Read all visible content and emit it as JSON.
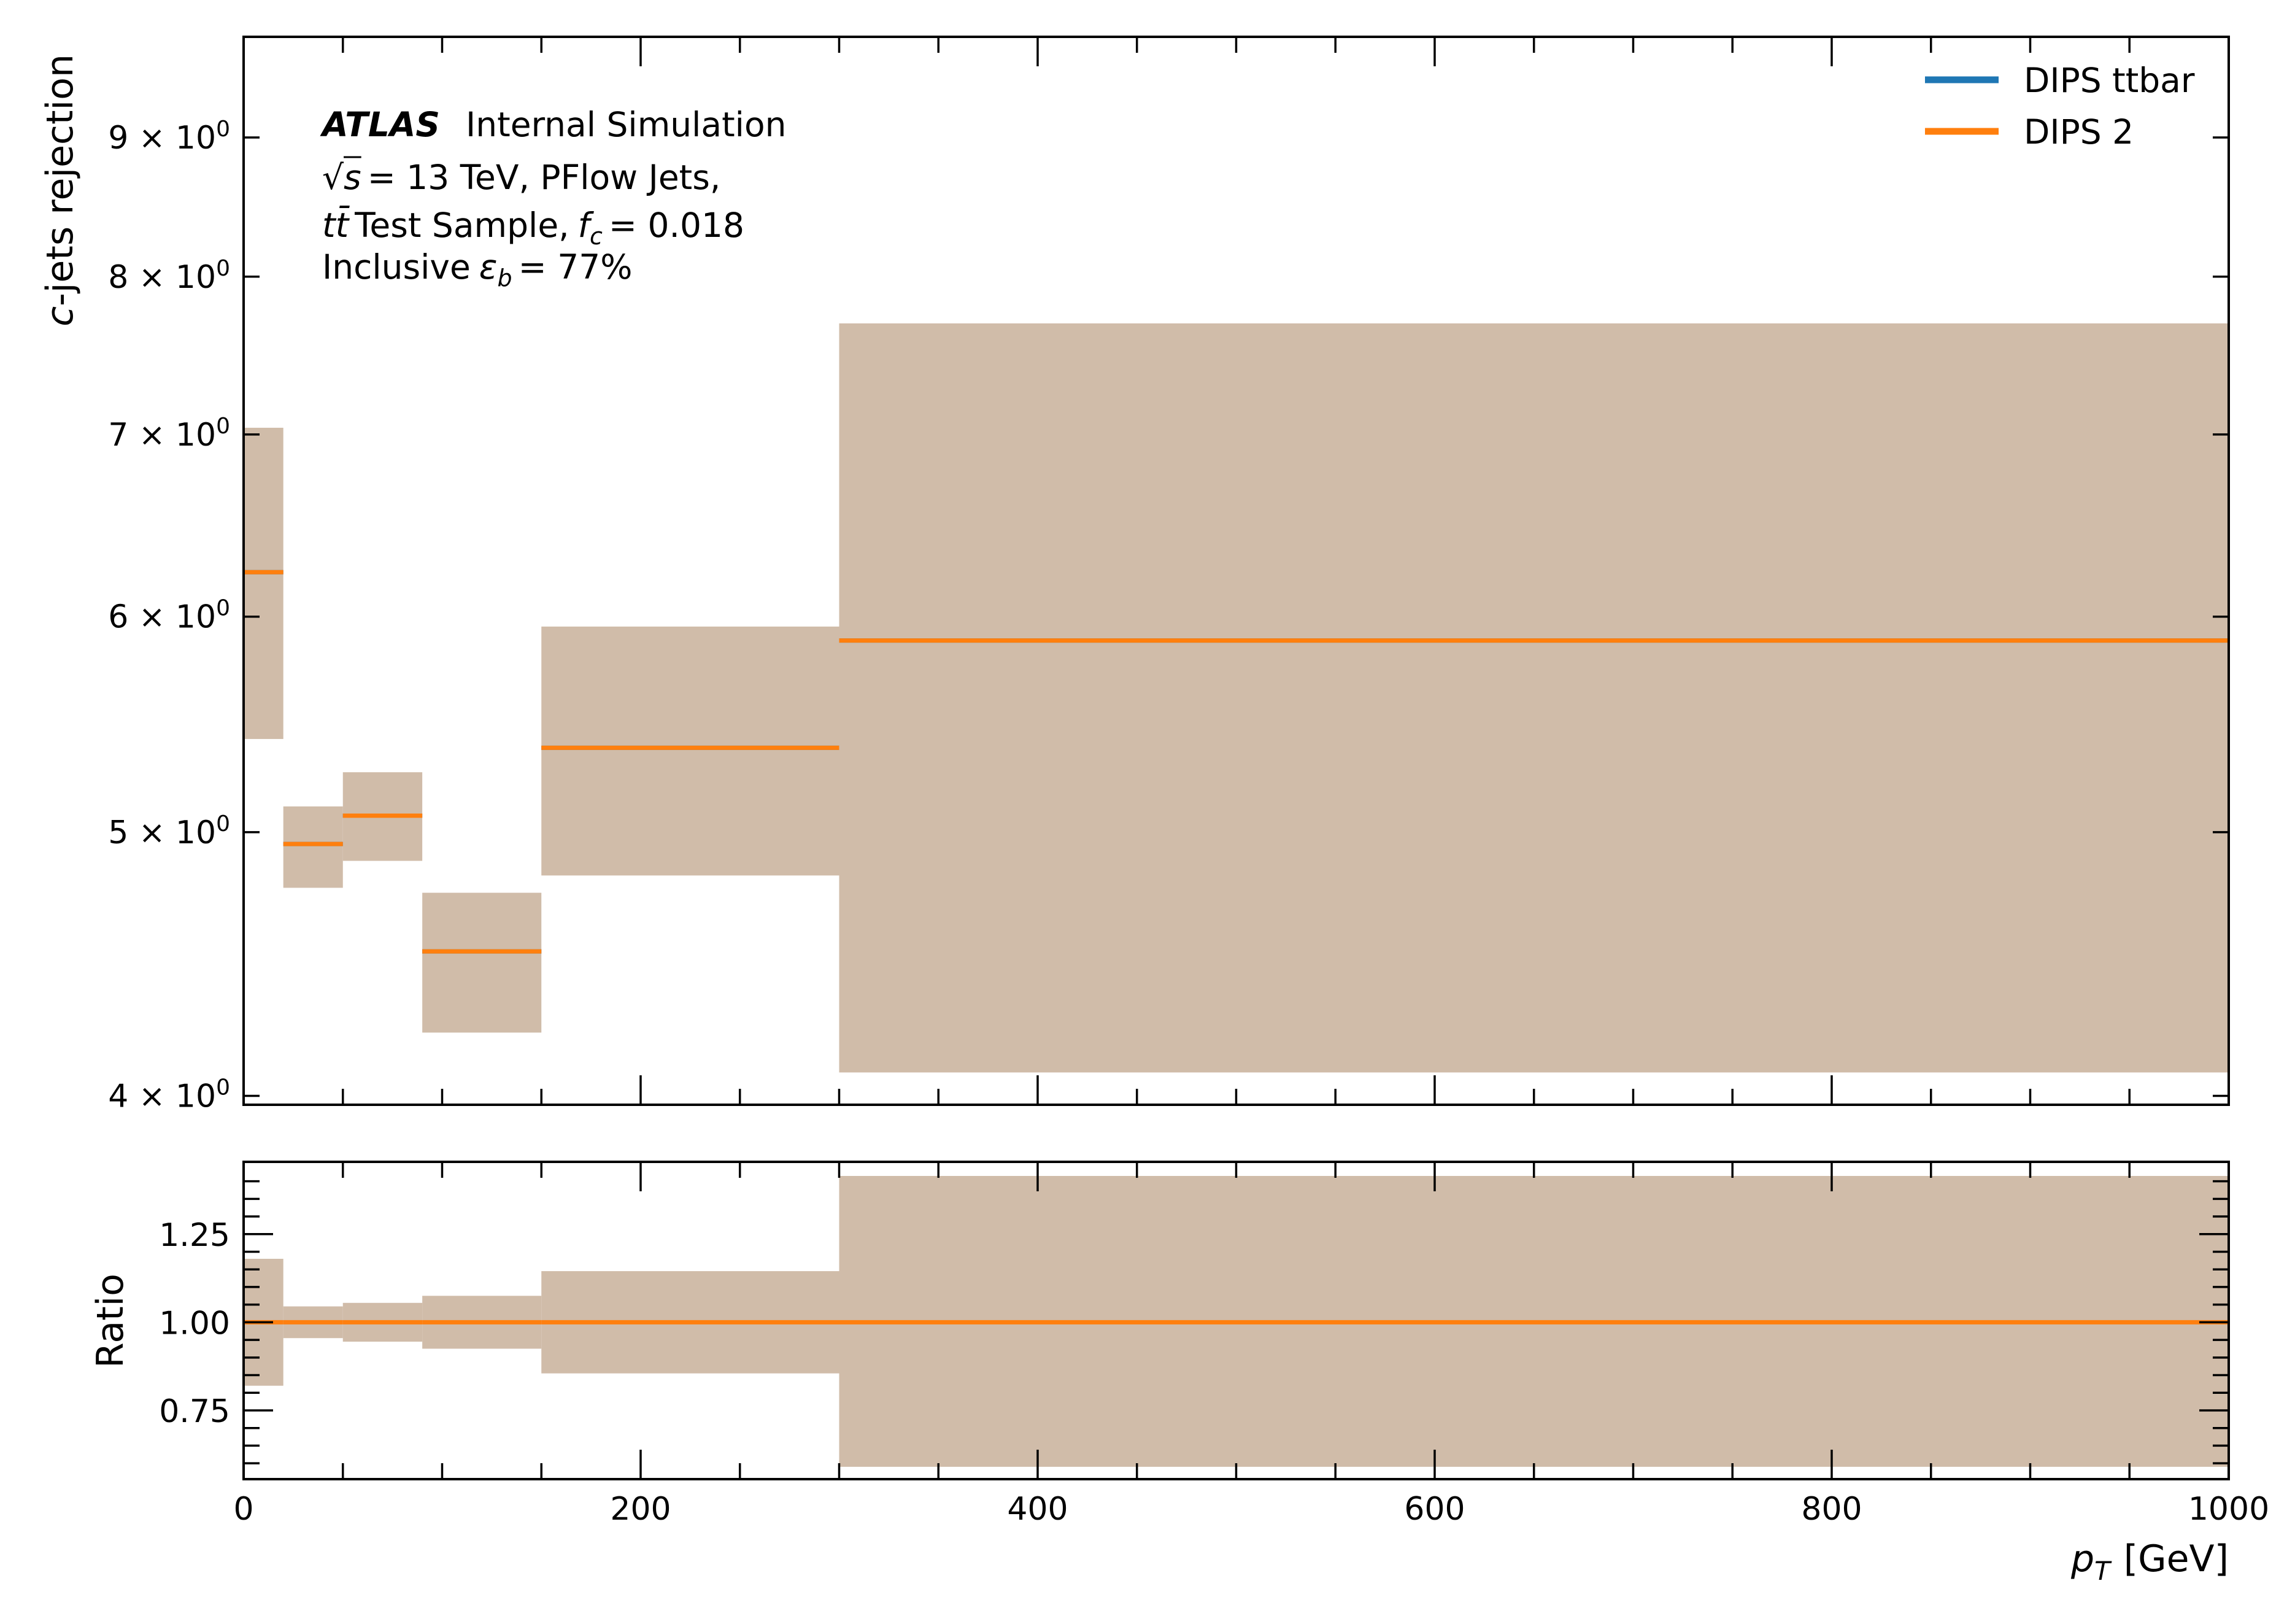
{
  "chart_data": [
    {
      "type": "step",
      "panel": "main",
      "ylabel_italic": "c",
      "ylabel_rest": "-jets rejection",
      "yscale": "log",
      "ylim": [
        3.97,
        9.8
      ],
      "xlim": [
        0,
        1000
      ],
      "y_ticks": [
        {
          "value": 4,
          "mantissa": "4"
        },
        {
          "value": 5,
          "mantissa": "5"
        },
        {
          "value": 6,
          "mantissa": "6"
        },
        {
          "value": 7,
          "mantissa": "7"
        },
        {
          "value": 8,
          "mantissa": "8"
        },
        {
          "value": 9,
          "mantissa": "9"
        }
      ],
      "y_tick_format": {
        "times": "×",
        "base": "10",
        "exponent": "0"
      },
      "bins": [
        20,
        50,
        90,
        150,
        300,
        1000
      ],
      "bin_edges": [
        0,
        20,
        50,
        90,
        150,
        300,
        1000
      ],
      "series": [
        {
          "name": "DIPS ttbar",
          "color": "#1f77b4",
          "values": [
            6.23,
            4.95,
            5.07,
            4.52,
            5.37,
            5.88
          ]
        },
        {
          "name": "DIPS 2",
          "color": "#ff7f0e",
          "values": [
            6.23,
            4.95,
            5.07,
            4.52,
            5.37,
            5.88
          ],
          "err_low": [
            5.41,
            4.77,
            4.88,
            4.22,
            4.82,
            4.08
          ],
          "err_high": [
            7.04,
            5.11,
            5.26,
            4.75,
            5.95,
            7.69
          ]
        }
      ],
      "band_color": "#d0bca9",
      "legend": {
        "position": "top-right",
        "entries": [
          "DIPS ttbar",
          "DIPS 2"
        ]
      },
      "annotation": {
        "atlas": "ATLAS",
        "atlas_suffix": "Internal Simulation",
        "energy": "= 13 TeV, PFlow Jets,",
        "sqrt_symbol": "√",
        "sqrt_arg": "s",
        "sample_prefix": "tt̄",
        "sample_text": "Test Sample,",
        "fc_label": "f",
        "fc_sub": "c",
        "fc_value": "= 0.018",
        "eff_text": "Inclusive",
        "eff_symbol": "ε",
        "eff_sub": "b",
        "eff_value": "= 77%"
      }
    },
    {
      "type": "step",
      "panel": "ratio",
      "ylabel": "Ratio",
      "ylim": [
        0.555,
        1.455
      ],
      "xlim": [
        0,
        1000
      ],
      "y_ticks": [
        "0.75",
        "1.00",
        "1.25"
      ],
      "x_ticks": [
        "0",
        "200",
        "400",
        "600",
        "800",
        "1000"
      ],
      "xlabel_symbol": "p",
      "xlabel_sub": "T",
      "xlabel_unit": "[GeV]",
      "bin_edges": [
        0,
        20,
        50,
        90,
        150,
        300,
        1000
      ],
      "ratio": [
        1.0,
        1.0,
        1.0,
        1.0,
        1.0,
        1.0
      ],
      "err_low": [
        0.82,
        0.955,
        0.945,
        0.925,
        0.855,
        0.59
      ],
      "err_high": [
        1.18,
        1.045,
        1.055,
        1.075,
        1.145,
        1.415
      ]
    }
  ]
}
